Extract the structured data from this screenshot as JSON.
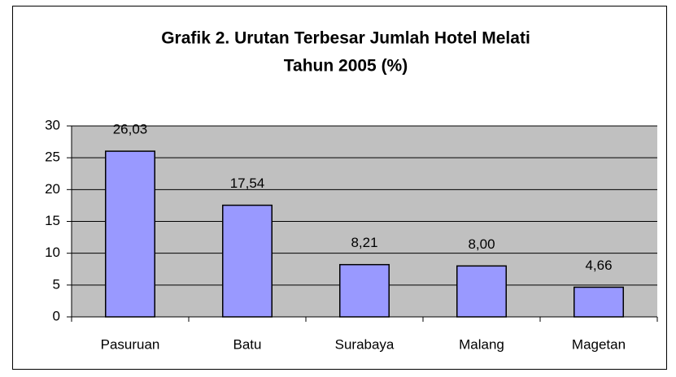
{
  "chart_data": {
    "type": "bar",
    "title": [
      "Grafik 2. Urutan Terbesar Jumlah Hotel Melati",
      "Tahun 2005 (%)"
    ],
    "categories": [
      "Pasuruan",
      "Batu",
      "Surabaya",
      "Malang",
      "Magetan"
    ],
    "values": [
      26.03,
      17.54,
      8.21,
      8.0,
      4.66
    ],
    "value_labels": [
      "26,03",
      "17,54",
      "8,21",
      "8,00",
      "4,66"
    ],
    "color": "#9999ff",
    "ylim": [
      0,
      30
    ],
    "yticks": [
      0,
      5,
      10,
      15,
      20,
      25,
      30
    ],
    "grid": true
  }
}
